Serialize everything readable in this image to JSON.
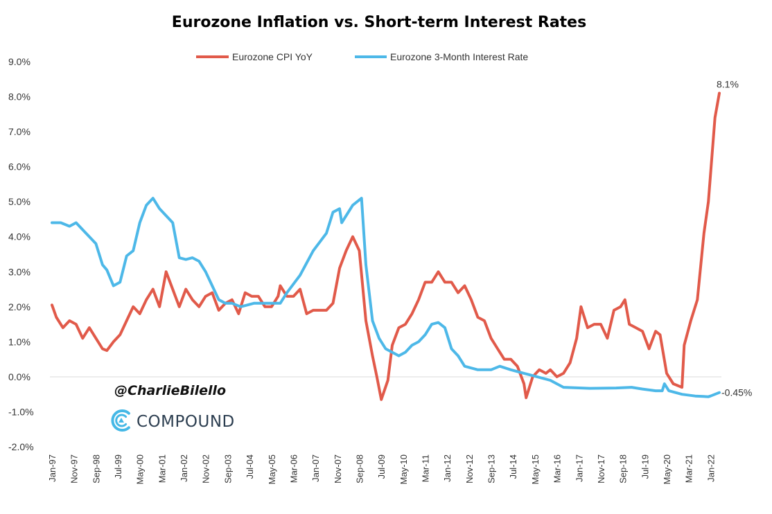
{
  "chart_data": {
    "type": "line",
    "title": "Eurozone Inflation vs. Short-term Interest Rates",
    "xlabel": "",
    "ylabel": "",
    "ylim": [
      -2.0,
      9.0
    ],
    "y_ticks": [
      "9.0%",
      "8.0%",
      "7.0%",
      "6.0%",
      "5.0%",
      "4.0%",
      "3.0%",
      "2.0%",
      "1.0%",
      "0.0%",
      "-1.0%",
      "-2.0%"
    ],
    "x_ticks": [
      "Jan-97",
      "Nov-97",
      "Sep-98",
      "Jul-99",
      "May-00",
      "Mar-01",
      "Jan-02",
      "Nov-02",
      "Sep-03",
      "Jul-04",
      "May-05",
      "Mar-06",
      "Jan-07",
      "Nov-07",
      "Sep-08",
      "Jul-09",
      "May-10",
      "Mar-11",
      "Jan-12",
      "Nov-12",
      "Sep-13",
      "Jul-14",
      "May-15",
      "Mar-16",
      "Jan-17",
      "Nov-17",
      "Sep-18",
      "Jul-19",
      "May-20",
      "Mar-21",
      "Jan-22"
    ],
    "grid": false,
    "legend_position": "top-center",
    "series": [
      {
        "name": "Eurozone CPI YoY",
        "color": "#e15a4a",
        "points": [
          [
            "1997-01",
            2.05
          ],
          [
            "1997-03",
            1.7
          ],
          [
            "1997-06",
            1.4
          ],
          [
            "1997-09",
            1.6
          ],
          [
            "1997-12",
            1.5
          ],
          [
            "1998-03",
            1.1
          ],
          [
            "1998-06",
            1.4
          ],
          [
            "1998-09",
            1.1
          ],
          [
            "1998-12",
            0.8
          ],
          [
            "1999-02",
            0.75
          ],
          [
            "1999-05",
            1.0
          ],
          [
            "1999-08",
            1.2
          ],
          [
            "1999-11",
            1.6
          ],
          [
            "2000-02",
            2.0
          ],
          [
            "2000-05",
            1.8
          ],
          [
            "2000-08",
            2.2
          ],
          [
            "2000-11",
            2.5
          ],
          [
            "2001-02",
            2.0
          ],
          [
            "2001-05",
            3.0
          ],
          [
            "2001-08",
            2.5
          ],
          [
            "2001-11",
            2.0
          ],
          [
            "2002-02",
            2.5
          ],
          [
            "2002-05",
            2.2
          ],
          [
            "2002-08",
            2.0
          ],
          [
            "2002-11",
            2.3
          ],
          [
            "2003-02",
            2.4
          ],
          [
            "2003-05",
            1.9
          ],
          [
            "2003-08",
            2.1
          ],
          [
            "2003-11",
            2.2
          ],
          [
            "2004-02",
            1.8
          ],
          [
            "2004-05",
            2.4
          ],
          [
            "2004-08",
            2.3
          ],
          [
            "2004-11",
            2.3
          ],
          [
            "2005-02",
            2.0
          ],
          [
            "2005-05",
            2.0
          ],
          [
            "2005-08",
            2.3
          ],
          [
            "2005-09",
            2.6
          ],
          [
            "2005-12",
            2.3
          ],
          [
            "2006-03",
            2.3
          ],
          [
            "2006-06",
            2.5
          ],
          [
            "2006-09",
            1.8
          ],
          [
            "2006-12",
            1.9
          ],
          [
            "2007-03",
            1.9
          ],
          [
            "2007-06",
            1.9
          ],
          [
            "2007-09",
            2.1
          ],
          [
            "2007-12",
            3.1
          ],
          [
            "2008-03",
            3.6
          ],
          [
            "2008-06",
            4.0
          ],
          [
            "2008-09",
            3.6
          ],
          [
            "2008-12",
            1.6
          ],
          [
            "2009-03",
            0.6
          ],
          [
            "2009-05",
            0.0
          ],
          [
            "2009-07",
            -0.65
          ],
          [
            "2009-10",
            -0.1
          ],
          [
            "2009-12",
            0.9
          ],
          [
            "2010-03",
            1.4
          ],
          [
            "2010-06",
            1.5
          ],
          [
            "2010-09",
            1.8
          ],
          [
            "2010-12",
            2.2
          ],
          [
            "2011-03",
            2.7
          ],
          [
            "2011-06",
            2.7
          ],
          [
            "2011-09",
            3.0
          ],
          [
            "2011-12",
            2.7
          ],
          [
            "2012-03",
            2.7
          ],
          [
            "2012-06",
            2.4
          ],
          [
            "2012-09",
            2.6
          ],
          [
            "2012-12",
            2.2
          ],
          [
            "2013-03",
            1.7
          ],
          [
            "2013-06",
            1.6
          ],
          [
            "2013-09",
            1.1
          ],
          [
            "2013-12",
            0.8
          ],
          [
            "2014-03",
            0.5
          ],
          [
            "2014-06",
            0.5
          ],
          [
            "2014-09",
            0.3
          ],
          [
            "2014-12",
            -0.2
          ],
          [
            "2015-01",
            -0.6
          ],
          [
            "2015-04",
            0.0
          ],
          [
            "2015-07",
            0.2
          ],
          [
            "2015-10",
            0.1
          ],
          [
            "2015-12",
            0.2
          ],
          [
            "2016-03",
            0.0
          ],
          [
            "2016-06",
            0.1
          ],
          [
            "2016-09",
            0.4
          ],
          [
            "2016-12",
            1.1
          ],
          [
            "2017-02",
            2.0
          ],
          [
            "2017-05",
            1.4
          ],
          [
            "2017-08",
            1.5
          ],
          [
            "2017-11",
            1.5
          ],
          [
            "2018-02",
            1.1
          ],
          [
            "2018-05",
            1.9
          ],
          [
            "2018-08",
            2.0
          ],
          [
            "2018-10",
            2.2
          ],
          [
            "2018-12",
            1.5
          ],
          [
            "2019-03",
            1.4
          ],
          [
            "2019-06",
            1.3
          ],
          [
            "2019-09",
            0.8
          ],
          [
            "2019-12",
            1.3
          ],
          [
            "2020-02",
            1.2
          ],
          [
            "2020-05",
            0.1
          ],
          [
            "2020-08",
            -0.2
          ],
          [
            "2020-12",
            -0.3
          ],
          [
            "2021-01",
            0.9
          ],
          [
            "2021-04",
            1.6
          ],
          [
            "2021-07",
            2.2
          ],
          [
            "2021-10",
            4.1
          ],
          [
            "2021-12",
            5.0
          ],
          [
            "2022-03",
            7.4
          ],
          [
            "2022-05",
            8.1
          ]
        ]
      },
      {
        "name": "Eurozone 3-Month Interest Rate",
        "color": "#4db8e8",
        "points": [
          [
            "1997-01",
            4.4
          ],
          [
            "1997-05",
            4.4
          ],
          [
            "1997-09",
            4.3
          ],
          [
            "1997-12",
            4.4
          ],
          [
            "1998-03",
            4.2
          ],
          [
            "1998-06",
            4.0
          ],
          [
            "1998-09",
            3.8
          ],
          [
            "1998-12",
            3.2
          ],
          [
            "1999-02",
            3.05
          ],
          [
            "1999-05",
            2.6
          ],
          [
            "1999-08",
            2.7
          ],
          [
            "1999-11",
            3.45
          ],
          [
            "2000-02",
            3.6
          ],
          [
            "2000-05",
            4.4
          ],
          [
            "2000-08",
            4.9
          ],
          [
            "2000-11",
            5.1
          ],
          [
            "2001-02",
            4.8
          ],
          [
            "2001-05",
            4.6
          ],
          [
            "2001-08",
            4.4
          ],
          [
            "2001-11",
            3.4
          ],
          [
            "2002-02",
            3.35
          ],
          [
            "2002-05",
            3.4
          ],
          [
            "2002-08",
            3.3
          ],
          [
            "2002-11",
            3.0
          ],
          [
            "2003-02",
            2.6
          ],
          [
            "2003-05",
            2.2
          ],
          [
            "2003-08",
            2.1
          ],
          [
            "2003-11",
            2.1
          ],
          [
            "2004-03",
            2.0
          ],
          [
            "2004-09",
            2.1
          ],
          [
            "2005-03",
            2.1
          ],
          [
            "2005-09",
            2.1
          ],
          [
            "2005-12",
            2.4
          ],
          [
            "2006-06",
            2.9
          ],
          [
            "2006-12",
            3.6
          ],
          [
            "2007-06",
            4.1
          ],
          [
            "2007-09",
            4.7
          ],
          [
            "2007-12",
            4.8
          ],
          [
            "2008-01",
            4.4
          ],
          [
            "2008-06",
            4.9
          ],
          [
            "2008-10",
            5.1
          ],
          [
            "2008-12",
            3.2
          ],
          [
            "2009-03",
            1.6
          ],
          [
            "2009-06",
            1.1
          ],
          [
            "2009-09",
            0.8
          ],
          [
            "2010-03",
            0.6
          ],
          [
            "2010-06",
            0.7
          ],
          [
            "2010-09",
            0.9
          ],
          [
            "2010-12",
            1.0
          ],
          [
            "2011-03",
            1.2
          ],
          [
            "2011-06",
            1.5
          ],
          [
            "2011-09",
            1.55
          ],
          [
            "2011-12",
            1.4
          ],
          [
            "2012-03",
            0.8
          ],
          [
            "2012-06",
            0.6
          ],
          [
            "2012-09",
            0.3
          ],
          [
            "2013-03",
            0.2
          ],
          [
            "2013-09",
            0.2
          ],
          [
            "2014-01",
            0.3
          ],
          [
            "2014-06",
            0.2
          ],
          [
            "2014-12",
            0.1
          ],
          [
            "2015-06",
            0.0
          ],
          [
            "2015-12",
            -0.1
          ],
          [
            "2016-06",
            -0.3
          ],
          [
            "2017-06",
            -0.33
          ],
          [
            "2018-06",
            -0.32
          ],
          [
            "2019-01",
            -0.3
          ],
          [
            "2019-06",
            -0.35
          ],
          [
            "2019-12",
            -0.4
          ],
          [
            "2020-03",
            -0.4
          ],
          [
            "2020-04",
            -0.2
          ],
          [
            "2020-06",
            -0.4
          ],
          [
            "2020-12",
            -0.5
          ],
          [
            "2021-06",
            -0.55
          ],
          [
            "2021-12",
            -0.57
          ],
          [
            "2022-01",
            -0.55
          ],
          [
            "2022-05",
            -0.45
          ]
        ]
      }
    ],
    "annotations": [
      {
        "text": "8.1%",
        "series": "Eurozone CPI YoY",
        "at": "2022-05"
      },
      {
        "text": "-0.45%",
        "series": "Eurozone 3-Month Interest Rate",
        "at": "2022-05"
      }
    ]
  },
  "watermark": {
    "handle": "@CharlieBilello",
    "brand": "COMPOUND",
    "logo_color": "#45b8e6"
  }
}
